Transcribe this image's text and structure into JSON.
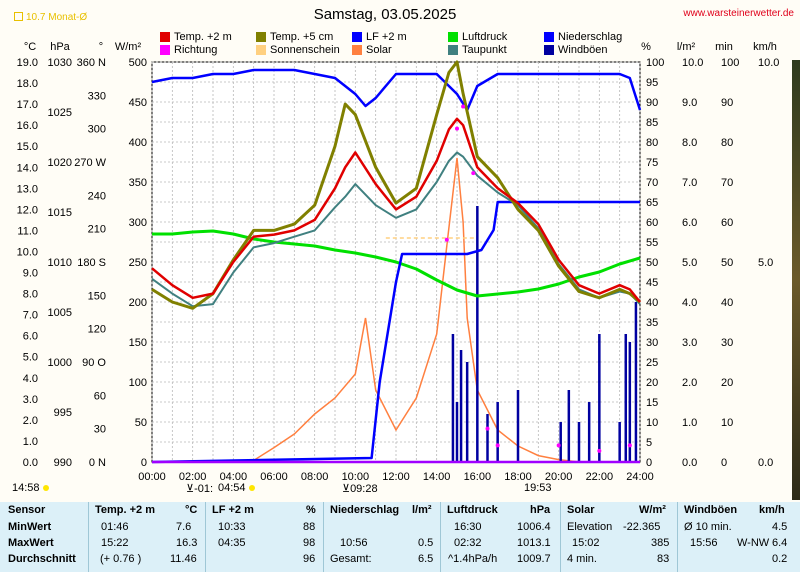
{
  "header": {
    "title": "Samstag, 03.05.2025",
    "site": "www.warsteinerwetter.de",
    "month_mark": "10.7 Monat-Ø"
  },
  "axes_units": {
    "celsius": "°C",
    "hpa": "hPa",
    "degree": "°",
    "wm2": "W/m²",
    "percent": "%",
    "lm2": "l/m²",
    "min": "min",
    "kmh": "km/h"
  },
  "axes": {
    "temp_ticks": [
      "19.0",
      "18.0",
      "17.0",
      "16.0",
      "15.0",
      "14.0",
      "13.0",
      "12.0",
      "11.0",
      "10.0",
      "9.0",
      "8.0",
      "7.0",
      "6.0",
      "5.0",
      "4.0",
      "3.0",
      "2.0",
      "1.0",
      "0.0"
    ],
    "hpa_ticks": [
      "1030",
      "1025",
      "1020",
      "1015",
      "1010",
      "1005",
      "1000",
      "995",
      "990"
    ],
    "dir_ticks": [
      "360 N",
      "330",
      "300",
      "270 W",
      "240",
      "210",
      "180 S",
      "150",
      "120",
      "90 O",
      "60",
      "30",
      "0 N"
    ],
    "solar_ticks": [
      "500",
      "450",
      "400",
      "350",
      "300",
      "250",
      "200",
      "150",
      "100",
      "50",
      "0"
    ],
    "pct_ticks": [
      "100",
      "95",
      "90",
      "85",
      "80",
      "75",
      "70",
      "65",
      "60",
      "55",
      "50",
      "45",
      "40",
      "35",
      "30",
      "25",
      "20",
      "15",
      "10",
      "5",
      "0"
    ],
    "rain_ticks": [
      "10.0",
      "9.0",
      "8.0",
      "7.0",
      "6.0",
      "5.0",
      "4.0",
      "3.0",
      "2.0",
      "1.0",
      "0.0"
    ],
    "min_ticks": [
      "100",
      "90",
      "80",
      "70",
      "60",
      "50",
      "40",
      "30",
      "20",
      "10",
      "0"
    ],
    "wind_ticks": [
      "10.0",
      "5.0",
      "0.0"
    ],
    "time_ticks": [
      "00:00",
      "02:00",
      "04:00",
      "06:00",
      "08:00",
      "10:00",
      "12:00",
      "14:00",
      "16:00",
      "18:00",
      "20:00",
      "22:00",
      "24:00"
    ]
  },
  "sun_markers": {
    "sunrise_min": "14:58",
    "dawn": "-01:",
    "sunrise": "04:54",
    "sun_dur": "09:28",
    "sunset": "19:53"
  },
  "chart_data": {
    "type": "line",
    "title": "Samstag, 03.05.2025",
    "x_unit": "hours",
    "xlim": [
      0,
      24
    ],
    "legend_position": "top",
    "grid": true,
    "series": [
      {
        "name": "Temp. +2 m",
        "color": "#e00000",
        "axis": "°C",
        "ylim": [
          0,
          19
        ],
        "x": [
          0,
          1,
          2,
          3,
          4,
          5,
          6,
          7,
          8,
          9,
          9.5,
          10,
          11,
          12,
          13,
          14,
          14.6,
          15,
          15.3,
          16,
          17,
          18,
          19,
          20,
          21,
          22,
          23,
          23.5,
          24
        ],
        "y": [
          9.2,
          8.4,
          7.8,
          8.0,
          9.5,
          10.7,
          10.8,
          11.0,
          11.5,
          13.0,
          14.0,
          14.7,
          13.2,
          12.0,
          12.6,
          14.3,
          15.8,
          16.3,
          16.0,
          14.0,
          13.0,
          12.3,
          11.3,
          9.6,
          8.4,
          8.0,
          8.4,
          8.2,
          7.6
        ]
      },
      {
        "name": "Temp. +5 cm",
        "color": "#808000",
        "axis": "°C",
        "ylim": [
          0,
          19
        ],
        "x": [
          0,
          1,
          2,
          3,
          4,
          5,
          6,
          7,
          8,
          9,
          9.5,
          10,
          11,
          12,
          13,
          14,
          14.6,
          15,
          15.3,
          16,
          17,
          18,
          19,
          20,
          21,
          22,
          23,
          23.5,
          24
        ],
        "y": [
          8.2,
          7.6,
          7.3,
          8.0,
          9.6,
          11.0,
          11.0,
          11.3,
          12.2,
          15.0,
          17.0,
          16.5,
          14.0,
          12.3,
          13.0,
          16.5,
          18.5,
          19.0,
          17.5,
          14.5,
          13.5,
          12.0,
          11.0,
          9.3,
          8.1,
          7.8,
          8.2,
          8.0,
          7.6
        ]
      },
      {
        "name": "LF +2 m",
        "color": "#0000ff",
        "axis": "%",
        "ylim": [
          0,
          100
        ],
        "x": [
          0,
          1,
          2,
          3,
          4,
          5,
          6,
          7,
          8,
          9,
          10,
          10.5,
          11,
          12,
          13,
          14,
          15,
          15.5,
          16,
          17,
          18,
          19,
          20,
          21,
          22,
          23,
          23.5,
          24
        ],
        "y": [
          95,
          96,
          96,
          97,
          97,
          98,
          98,
          98,
          97,
          96,
          92,
          89,
          91,
          97,
          97,
          97,
          92,
          88,
          94,
          97,
          97,
          97,
          97,
          97,
          97,
          97,
          96,
          88
        ]
      },
      {
        "name": "Luftdruck",
        "color": "#00e000",
        "axis": "hPa",
        "ylim": [
          990,
          1030
        ],
        "x": [
          0,
          1,
          2,
          3,
          4,
          5,
          6,
          7,
          8,
          9,
          10,
          11,
          12,
          13,
          14,
          15,
          16,
          17,
          18,
          19,
          20,
          21,
          22,
          23,
          24
        ],
        "y": [
          1012.8,
          1012.8,
          1013.0,
          1013.1,
          1012.8,
          1012.3,
          1012.0,
          1011.8,
          1011.6,
          1011.2,
          1010.9,
          1010.5,
          1010.0,
          1009.3,
          1008.2,
          1007.2,
          1006.6,
          1006.8,
          1007.0,
          1007.3,
          1007.8,
          1008.5,
          1009.0,
          1009.8,
          1010.4
        ]
      },
      {
        "name": "Niederschlag",
        "color": "#0000ff",
        "axis": "l/m²",
        "ylim": [
          0,
          10
        ],
        "x": [
          0,
          10.8,
          11.2,
          12.0,
          12.3,
          13.0,
          15.5,
          16.2,
          16.8,
          17.0,
          18.0,
          20.0,
          24.0
        ],
        "y": [
          0,
          0.1,
          2.0,
          4.5,
          5.2,
          5.2,
          5.2,
          5.3,
          5.8,
          6.5,
          6.5,
          6.5,
          6.5
        ]
      },
      {
        "name": "Richtung",
        "color": "#ff00ff",
        "axis": "°",
        "ylim": [
          0,
          360
        ],
        "x": [
          14.5,
          15,
          15.3,
          15.8,
          16.5,
          17,
          20,
          22,
          23.5
        ],
        "y": [
          200,
          300,
          320,
          260,
          30,
          15,
          15,
          10,
          15
        ]
      },
      {
        "name": "Sonnenschein",
        "color": "#ffd080",
        "axis": "min",
        "ylim": [
          0,
          100
        ],
        "x": [
          11.5,
          13,
          14,
          15,
          16
        ],
        "y": [
          56,
          56,
          56,
          56,
          56
        ]
      },
      {
        "name": "Solar",
        "color": "#ff8040",
        "axis": "W/m²",
        "ylim": [
          0,
          500
        ],
        "x": [
          5,
          6,
          7,
          8,
          9,
          10,
          10.5,
          11,
          12,
          13,
          14,
          14.5,
          15,
          15.3,
          15.5,
          16,
          17,
          18,
          19,
          20,
          21
        ],
        "y": [
          2,
          18,
          35,
          60,
          80,
          110,
          180,
          90,
          40,
          80,
          160,
          270,
          380,
          300,
          180,
          90,
          40,
          20,
          8,
          3,
          0
        ]
      },
      {
        "name": "Taupunkt",
        "color": "#408080",
        "axis": "°C",
        "ylim": [
          0,
          19
        ],
        "x": [
          0,
          1,
          2,
          3,
          4,
          5,
          6,
          7,
          8,
          9,
          9.5,
          10,
          11,
          12,
          13,
          14,
          14.6,
          15,
          15.3,
          16,
          17,
          18,
          19,
          20,
          21,
          22,
          23,
          23.5,
          24
        ],
        "y": [
          8.7,
          8.0,
          7.4,
          7.5,
          9.0,
          10.2,
          10.4,
          10.7,
          11.0,
          12.1,
          12.6,
          13.2,
          12.2,
          11.6,
          12.0,
          13.3,
          14.3,
          14.7,
          14.5,
          13.6,
          12.8,
          12.2,
          11.1,
          9.4,
          8.2,
          7.8,
          8.1,
          8.0,
          7.5
        ]
      },
      {
        "name": "Windböen",
        "color": "#0000a0",
        "axis": "km/h",
        "ylim": [
          0,
          10
        ],
        "x": [
          14.8,
          15,
          15.2,
          15.5,
          16,
          16.5,
          17,
          18,
          20.1,
          20.5,
          21,
          21.5,
          22,
          23,
          23.3,
          23.5,
          23.8
        ],
        "y": [
          3.2,
          1.5,
          2.8,
          2.5,
          6.4,
          1.2,
          1.5,
          1.8,
          1.0,
          1.8,
          1.0,
          1.5,
          3.2,
          1.0,
          3.2,
          3.0,
          4.0
        ]
      }
    ]
  },
  "stats": {
    "headers": {
      "sensor": "Sensor",
      "temp": "Temp. +2 m",
      "temp_unit": "°C",
      "lf": "LF +2 m",
      "lf_unit": "%",
      "rain": "Niederschlag",
      "rain_unit": "l/m²",
      "press": "Luftdruck",
      "press_unit": "hPa",
      "solar": "Solar",
      "solar_unit": "W/m²",
      "wind": "Windböen",
      "wind_unit": "km/h"
    },
    "rows": [
      {
        "label": "MinWert",
        "temp_time": "01:46",
        "temp": "7.6",
        "lf_time": "10:33",
        "lf": "88",
        "rain_label": "",
        "rain": "",
        "press_time": "16:30",
        "press": "1006.4",
        "solar_label": "Elevation",
        "solar": "-22.365",
        "wind_label": "Ø 10 min.",
        "wind": "4.5"
      },
      {
        "label": "MaxWert",
        "temp_time": "15:22",
        "temp": "16.3",
        "lf_time": "04:35",
        "lf": "98",
        "rain_label": "10:56",
        "rain": "0.5",
        "press_time": "02:32",
        "press": "1013.1",
        "solar_label": "15:02",
        "solar": "385",
        "wind_label": "15:56",
        "wind_dir": "W-NW",
        "wind": "6.4"
      },
      {
        "label": "Durchschnitt",
        "temp_time": "(+ 0.76 )",
        "temp": "11.46",
        "lf_time": "",
        "lf": "96",
        "rain_label": "Gesamt:",
        "rain": "6.5",
        "press_time": "^1.4hPa/h",
        "press": "1009.7",
        "solar_label": "4 min.",
        "solar": "83",
        "wind_label": "",
        "wind": "0.2"
      }
    ]
  }
}
